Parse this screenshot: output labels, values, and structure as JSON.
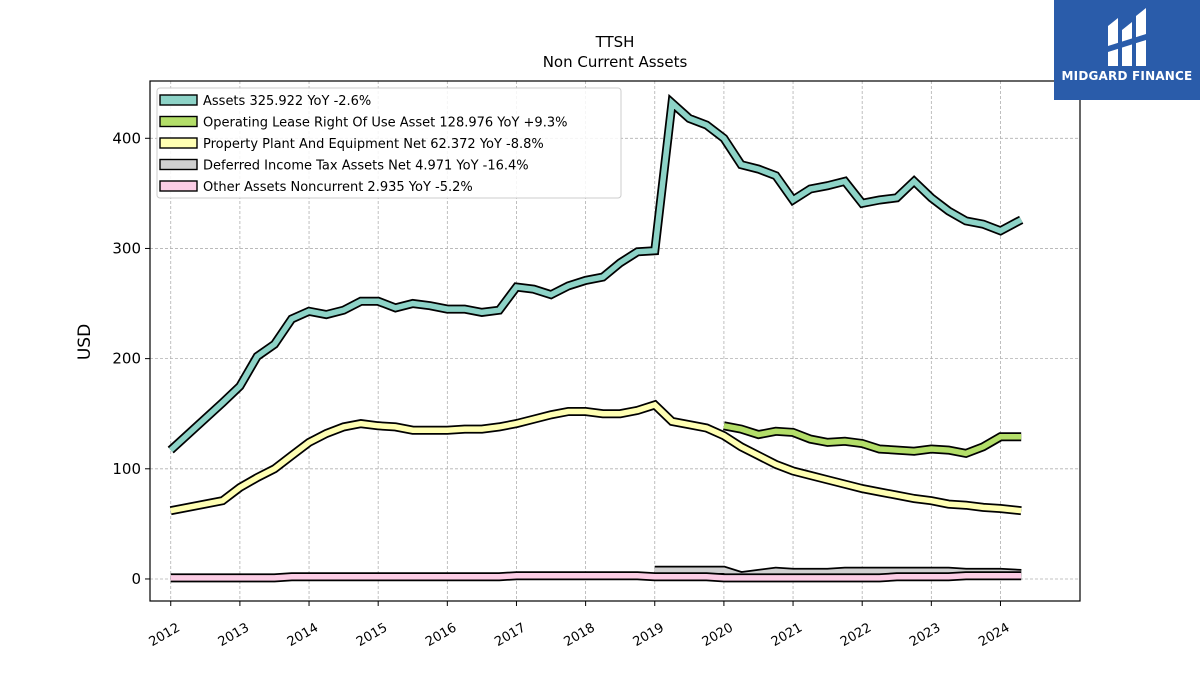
{
  "title": "TTSH",
  "subtitle": "Non Current  Assets",
  "brand": {
    "name": "MIDGARD FINANCE",
    "color": "#2a5caa"
  },
  "chart_data": {
    "type": "line",
    "ylabel": "USD",
    "xlabel": "",
    "ylim": [
      -20,
      452
    ],
    "xlim": [
      2011.7,
      2025.15
    ],
    "yticks": [
      0,
      100,
      200,
      300,
      400
    ],
    "xticks": [
      "2012",
      "2013",
      "2014",
      "2015",
      "2016",
      "2017",
      "2018",
      "2019",
      "2020",
      "2021",
      "2022",
      "2023",
      "2024"
    ],
    "grid": true,
    "legend_position": "top-left",
    "series": [
      {
        "name": "Assets  325.922 YoY -2.6%",
        "color": "#8dd3c7",
        "x": [
          2012.0,
          2012.75,
          2013.0,
          2013.25,
          2013.5,
          2013.75,
          2014.0,
          2014.25,
          2014.5,
          2014.75,
          2015.0,
          2015.25,
          2015.5,
          2015.75,
          2016.0,
          2016.25,
          2016.5,
          2016.75,
          2017.0,
          2017.25,
          2017.5,
          2017.75,
          2018.0,
          2018.25,
          2018.5,
          2018.75,
          2019.0,
          2019.25,
          2019.5,
          2019.75,
          2020.0,
          2020.25,
          2020.5,
          2020.75,
          2021.0,
          2021.25,
          2021.5,
          2021.75,
          2022.0,
          2022.25,
          2022.5,
          2022.75,
          2023.0,
          2023.25,
          2023.5,
          2023.75,
          2024.0,
          2024.3
        ],
        "values": [
          117,
          160,
          175,
          202,
          213,
          236,
          243,
          240,
          244,
          252,
          252,
          246,
          250,
          248,
          245,
          245,
          242,
          244,
          265,
          263,
          258,
          266,
          271,
          274,
          287,
          297,
          298,
          432,
          418,
          412,
          400,
          376,
          372,
          366,
          344,
          354,
          357,
          361,
          341,
          344,
          346,
          361,
          346,
          334,
          325,
          322,
          316,
          326
        ]
      },
      {
        "name": "Operating Lease Right Of Use Asset  128.976 YoY +9.3%",
        "color": "#b3de69",
        "x": [
          2020.0,
          2020.25,
          2020.5,
          2020.75,
          2021.0,
          2021.25,
          2021.5,
          2021.75,
          2022.0,
          2022.25,
          2022.5,
          2022.75,
          2023.0,
          2023.25,
          2023.5,
          2023.75,
          2024.0,
          2024.3
        ],
        "values": [
          139,
          136,
          131,
          134,
          133,
          127,
          124,
          125,
          123,
          118,
          117,
          116,
          118,
          117,
          114,
          120,
          129,
          129
        ]
      },
      {
        "name": "Property Plant And Equipment Net  62.372 YoY -8.8%",
        "color": "#ffffb3",
        "x": [
          2012.0,
          2012.75,
          2013.0,
          2013.25,
          2013.5,
          2013.75,
          2014.0,
          2014.25,
          2014.5,
          2014.75,
          2015.0,
          2015.25,
          2015.5,
          2015.75,
          2016.0,
          2016.25,
          2016.5,
          2016.75,
          2017.0,
          2017.25,
          2017.5,
          2017.75,
          2018.0,
          2018.25,
          2018.5,
          2018.75,
          2019.0,
          2019.25,
          2019.5,
          2019.75,
          2020.0,
          2020.25,
          2020.5,
          2020.75,
          2021.0,
          2021.25,
          2021.5,
          2021.75,
          2022.0,
          2022.25,
          2022.5,
          2022.75,
          2023.0,
          2023.25,
          2023.5,
          2023.75,
          2024.0,
          2024.3
        ],
        "values": [
          62,
          71,
          83,
          92,
          100,
          112,
          124,
          132,
          138,
          141,
          139,
          138,
          135,
          135,
          135,
          136,
          136,
          138,
          141,
          145,
          149,
          152,
          152,
          150,
          150,
          153,
          158,
          143,
          140,
          137,
          130,
          120,
          112,
          104,
          98,
          94,
          90,
          86,
          82,
          79,
          76,
          73,
          71,
          68,
          67,
          65,
          64,
          62
        ]
      },
      {
        "name": "Deferred Income Tax Assets Net  4.971 YoY -16.4%",
        "color": "#d0d0d0",
        "x": [
          2019.0,
          2019.25,
          2019.5,
          2019.75,
          2020.0,
          2020.25,
          2020.5,
          2020.75,
          2021.0,
          2021.25,
          2021.5,
          2021.75,
          2022.0,
          2022.25,
          2022.5,
          2022.75,
          2023.0,
          2023.25,
          2023.5,
          2023.75,
          2024.0,
          2024.3
        ],
        "values": [
          8,
          8,
          8,
          8,
          8,
          3,
          5,
          7,
          6,
          6,
          6,
          7,
          7,
          7,
          7,
          7,
          7,
          7,
          6,
          6,
          6,
          5
        ]
      },
      {
        "name": "Other Assets Noncurrent  2.935 YoY -5.2%",
        "color": "#fccde5",
        "x": [
          2012.0,
          2012.75,
          2013.0,
          2013.25,
          2013.5,
          2013.75,
          2014.0,
          2014.25,
          2014.5,
          2014.75,
          2015.0,
          2015.25,
          2015.5,
          2015.75,
          2016.0,
          2016.25,
          2016.5,
          2016.75,
          2017.0,
          2017.25,
          2017.5,
          2017.75,
          2018.0,
          2018.25,
          2018.5,
          2018.75,
          2019.0,
          2019.25,
          2019.5,
          2019.75,
          2020.0,
          2020.25,
          2020.5,
          2020.75,
          2021.0,
          2021.25,
          2021.5,
          2021.75,
          2022.0,
          2022.25,
          2022.5,
          2022.75,
          2023.0,
          2023.25,
          2023.5,
          2023.75,
          2024.0,
          2024.3
        ],
        "values": [
          1,
          1,
          1,
          1,
          1,
          2,
          2,
          2,
          2,
          2,
          2,
          2,
          2,
          2,
          2,
          2,
          2,
          2,
          3,
          3,
          3,
          3,
          3,
          3,
          3,
          3,
          2,
          2,
          2,
          2,
          1,
          1,
          1,
          1,
          1,
          1,
          1,
          1,
          1,
          1,
          2,
          2,
          2,
          2,
          3,
          3,
          3,
          3
        ]
      }
    ]
  }
}
